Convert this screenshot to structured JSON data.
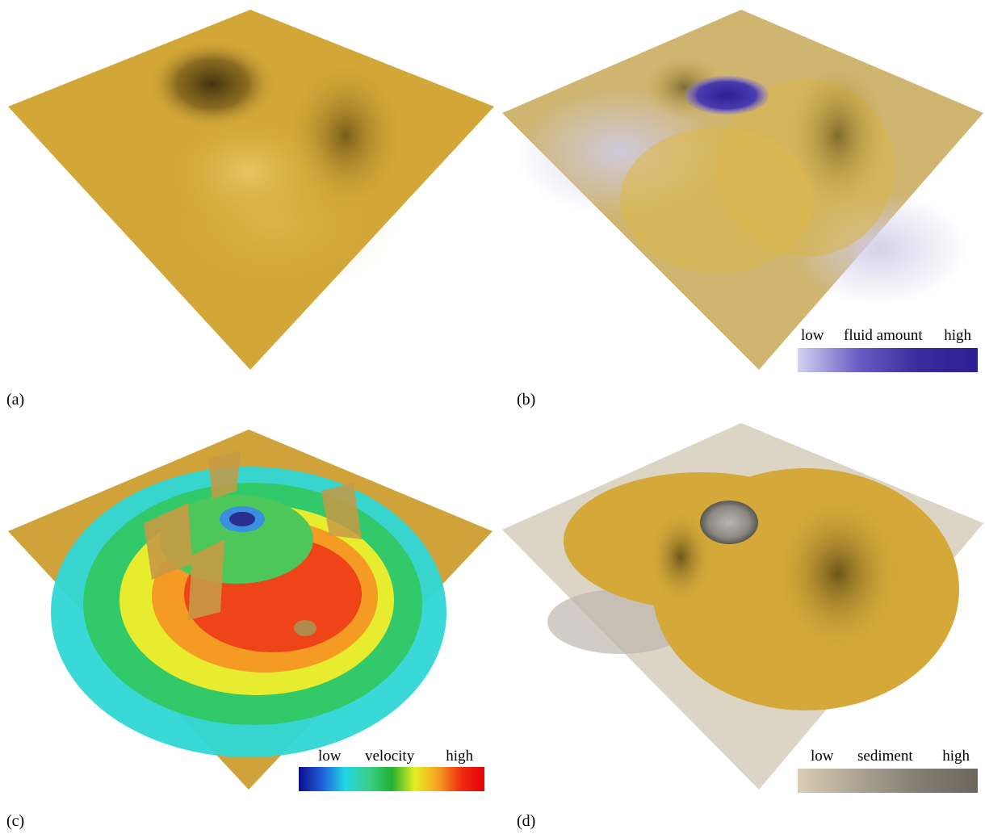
{
  "panels": [
    {
      "id": "a",
      "caption": "(a)"
    },
    {
      "id": "b",
      "caption": "(b)",
      "legend": {
        "low": "low",
        "title": "fluid amount",
        "high": "high",
        "colors": [
          "#d4d2f2",
          "#6a5ec4",
          "#3a2a9c",
          "#2f1f96"
        ]
      }
    },
    {
      "id": "c",
      "caption": "(c)",
      "legend": {
        "low": "low",
        "title": "velocity",
        "high": "high",
        "colors": [
          "#0c0e8a",
          "#1d5fd8",
          "#22d6e6",
          "#3bd08a",
          "#23b033",
          "#e4f020",
          "#f7a020",
          "#f02b10",
          "#e4000a"
        ]
      }
    },
    {
      "id": "d",
      "caption": "(d)",
      "legend": {
        "low": "low",
        "title": "sediment",
        "high": "high",
        "colors": [
          "#d9cdb5",
          "#aca393",
          "#847d73",
          "#6d665c"
        ]
      }
    }
  ],
  "colors": {
    "terrain": "#d4a93a",
    "terrain_light": "#e2bf55",
    "terrain_dark": "#7a5d1c",
    "sediment_ground": "#d8d0c0"
  }
}
